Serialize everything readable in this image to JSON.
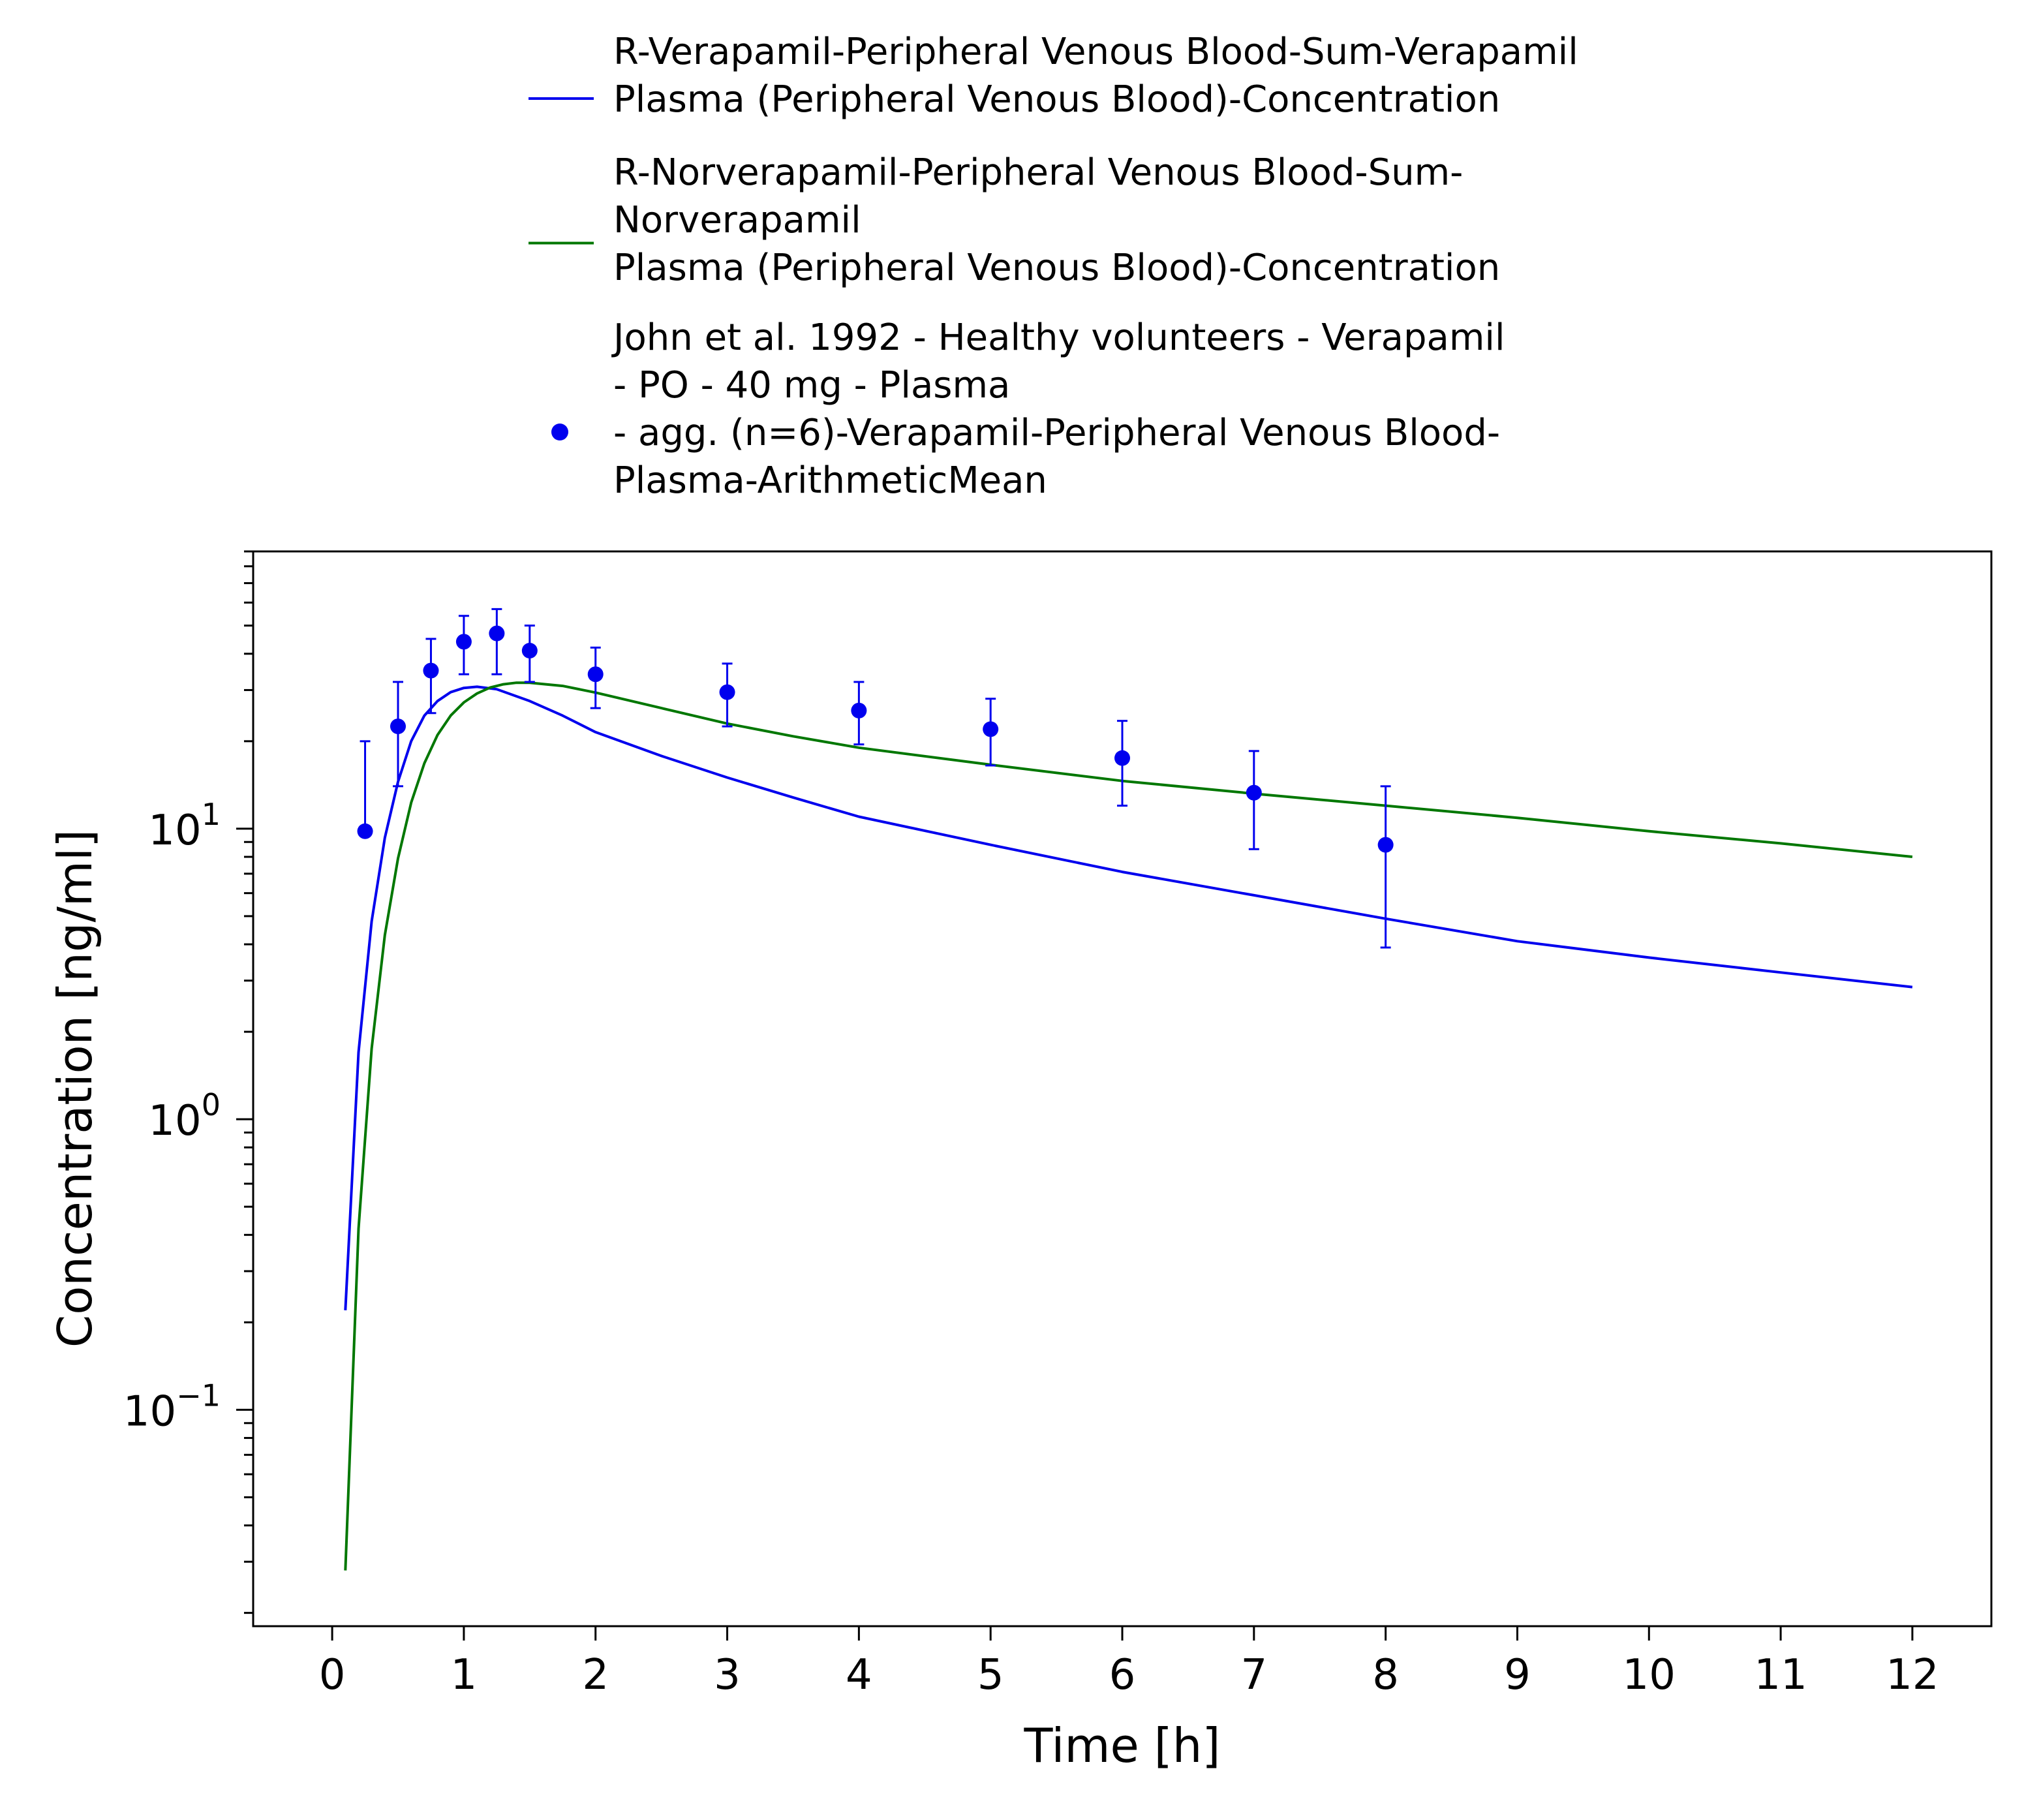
{
  "chart_data": {
    "type": "line",
    "xlabel": "Time [h]",
    "ylabel": "Concentration [ng/ml]",
    "xlim": [
      -0.6,
      12.6
    ],
    "ylim": [
      0.018,
      90
    ],
    "yscale": "log",
    "grid": false,
    "legend_position": "top",
    "x_ticks": [
      0,
      1,
      2,
      3,
      4,
      5,
      6,
      7,
      8,
      9,
      10,
      11,
      12
    ],
    "x_tick_labels": [
      "0",
      "1",
      "2",
      "3",
      "4",
      "5",
      "6",
      "7",
      "8",
      "9",
      "10",
      "11",
      "12"
    ],
    "y_ticks": [
      {
        "value": 0.1,
        "base": "10",
        "exp": "−1"
      },
      {
        "value": 1,
        "base": "10",
        "exp": "0"
      },
      {
        "value": 10,
        "base": "10",
        "exp": "1"
      }
    ],
    "series": [
      {
        "name_lines": [
          "R-Verapamil-Peripheral Venous Blood-Sum-Verapamil",
          "Plasma (Peripheral Venous Blood)-Concentration"
        ],
        "kind": "line",
        "color": "#0000ee",
        "x": [
          0.1,
          0.2,
          0.3,
          0.4,
          0.5,
          0.6,
          0.7,
          0.8,
          0.9,
          1.0,
          1.1,
          1.25,
          1.5,
          1.75,
          2.0,
          2.5,
          3.0,
          3.5,
          4.0,
          5.0,
          6.0,
          7.0,
          8.0,
          9.0,
          10.0,
          11.0,
          12.0
        ],
        "y": [
          0.22,
          1.7,
          4.8,
          9.3,
          14.5,
          20,
          24.5,
          27.5,
          29.5,
          30.5,
          30.8,
          30.2,
          27.5,
          24.5,
          21.5,
          17.8,
          15.0,
          12.8,
          11.0,
          8.8,
          7.1,
          5.9,
          4.9,
          4.1,
          3.6,
          3.2,
          2.85
        ]
      },
      {
        "name_lines": [
          "R-Norverapamil-Peripheral Venous Blood-Sum-",
          "Norverapamil",
          "Plasma (Peripheral Venous Blood)-Concentration"
        ],
        "kind": "line",
        "color": "#007700",
        "x": [
          0.1,
          0.2,
          0.3,
          0.4,
          0.5,
          0.6,
          0.7,
          0.8,
          0.9,
          1.0,
          1.1,
          1.2,
          1.3,
          1.4,
          1.5,
          1.75,
          2.0,
          2.5,
          3.0,
          3.5,
          4.0,
          5.0,
          6.0,
          7.0,
          8.0,
          9.0,
          10.0,
          11.0,
          12.0
        ],
        "y": [
          0.028,
          0.42,
          1.75,
          4.3,
          7.9,
          12.3,
          16.8,
          21,
          24.5,
          27.2,
          29.2,
          30.6,
          31.4,
          31.8,
          31.8,
          31.0,
          29.4,
          26.0,
          23.0,
          20.8,
          19.0,
          16.6,
          14.6,
          13.2,
          12.0,
          10.9,
          9.8,
          8.9,
          8.0
        ]
      },
      {
        "name_lines": [
          "John et al. 1992 - Healthy volunteers - Verapamil",
          "- PO - 40 mg - Plasma",
          "- agg. (n=6)-Verapamil-Peripheral Venous Blood-",
          "Plasma-ArithmeticMean"
        ],
        "kind": "scatter",
        "color": "#0000ee",
        "x": [
          0.25,
          0.5,
          0.75,
          1.0,
          1.25,
          1.5,
          2.0,
          3.0,
          4.0,
          5.0,
          6.0,
          7.0,
          8.0
        ],
        "y": [
          9.8,
          22.5,
          35,
          44,
          47,
          41,
          34,
          29.5,
          25.5,
          22,
          17.5,
          13.3,
          8.8
        ],
        "y_err_low": [
          9.8,
          14,
          25,
          34,
          34,
          32,
          26,
          22.5,
          19.5,
          16.5,
          12,
          8.5,
          3.9
        ],
        "y_err_high": [
          20,
          32,
          45,
          54,
          57,
          50,
          42,
          37,
          32,
          28,
          23.5,
          18.5,
          14
        ]
      }
    ]
  }
}
